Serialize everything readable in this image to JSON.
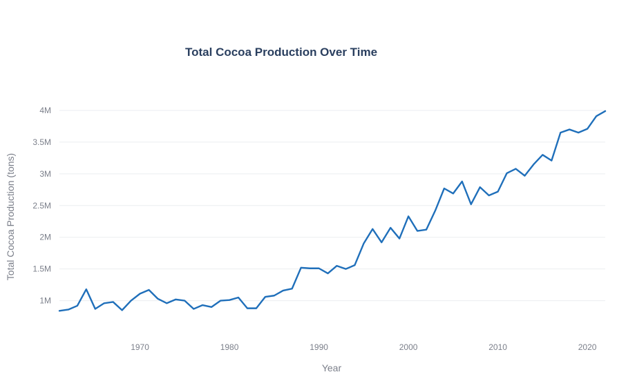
{
  "chart_data": {
    "type": "line",
    "title": "Total Cocoa Production Over Time",
    "xlabel": "Year",
    "ylabel": "Total Cocoa Production (tons)",
    "xlim": [
      1961,
      2022
    ],
    "ylim": [
      750000,
      4000000
    ],
    "x_ticks": [
      1970,
      1980,
      1990,
      2000,
      2010,
      2020
    ],
    "x_tick_labels": [
      "1970",
      "1980",
      "1990",
      "2000",
      "2010",
      "2020"
    ],
    "y_ticks": [
      1000000,
      1500000,
      2000000,
      2500000,
      3000000,
      3500000,
      4000000
    ],
    "y_tick_labels": [
      "1M",
      "1.5M",
      "2M",
      "2.5M",
      "3M",
      "3.5M",
      "4M"
    ],
    "grid": true,
    "line_color": "#1f6fba",
    "series": [
      {
        "x": [
          1961,
          1962,
          1963,
          1964,
          1965,
          1966,
          1967,
          1968,
          1969,
          1970,
          1971,
          1972,
          1973,
          1974,
          1975,
          1976,
          1977,
          1978,
          1979,
          1980,
          1981,
          1982,
          1983,
          1984,
          1985,
          1986,
          1987,
          1988,
          1989,
          1990,
          1991,
          1992,
          1993,
          1994,
          1995,
          1996,
          1997,
          1998,
          1999,
          2000,
          2001,
          2002,
          2003,
          2004,
          2005,
          2006,
          2007,
          2008,
          2009,
          2010,
          2011,
          2012,
          2013,
          2014,
          2015,
          2016,
          2017,
          2018,
          2019,
          2020,
          2021,
          2022
        ],
        "values": [
          840000,
          860000,
          920000,
          1180000,
          870000,
          960000,
          980000,
          850000,
          1000000,
          1110000,
          1170000,
          1030000,
          960000,
          1020000,
          1000000,
          870000,
          930000,
          900000,
          1000000,
          1010000,
          1050000,
          880000,
          880000,
          1060000,
          1080000,
          1160000,
          1190000,
          1520000,
          1510000,
          1510000,
          1430000,
          1550000,
          1500000,
          1560000,
          1900000,
          2130000,
          1920000,
          2150000,
          1980000,
          2330000,
          2100000,
          2120000,
          2420000,
          2770000,
          2690000,
          2880000,
          2520000,
          2790000,
          2660000,
          2720000,
          3010000,
          3080000,
          2970000,
          3150000,
          3300000,
          3210000,
          3650000,
          3700000,
          3650000,
          3710000,
          3910000,
          3990000
        ]
      }
    ]
  }
}
